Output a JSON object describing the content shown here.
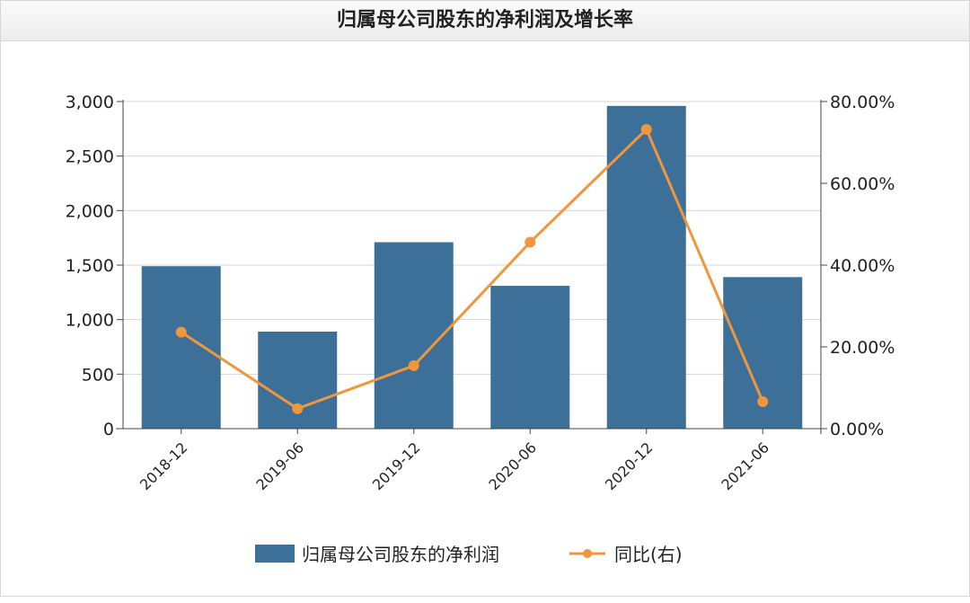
{
  "chart_data": {
    "type": "bar",
    "title": "归属母公司股东的净利润及增长率",
    "categories": [
      "2018-12",
      "2019-06",
      "2019-12",
      "2020-06",
      "2020-12",
      "2021-06"
    ],
    "series": [
      {
        "name": "归属母公司股东的净利润",
        "type": "bar",
        "axis": "left",
        "color": "#3d7099",
        "values": [
          1490,
          890,
          1710,
          1310,
          2960,
          1390
        ]
      },
      {
        "name": "同比(右)",
        "type": "line",
        "axis": "right",
        "color": "#f0963c",
        "values": [
          23.6,
          4.9,
          15.4,
          45.6,
          73.2,
          6.6
        ]
      }
    ],
    "y_left": {
      "ylim": [
        0,
        3000
      ],
      "ticks": [
        0,
        500,
        1000,
        1500,
        2000,
        2500,
        3000
      ],
      "tick_labels": [
        "0",
        "500",
        "1,000",
        "1,500",
        "2,000",
        "2,500",
        "3,000"
      ]
    },
    "y_right": {
      "ylim": [
        0,
        80
      ],
      "ticks": [
        0,
        20,
        40,
        60,
        80
      ],
      "tick_labels": [
        "0.00%",
        "20.00%",
        "40.00%",
        "60.00%",
        "80.00%"
      ]
    },
    "grid": true,
    "legend_position": "bottom-center"
  }
}
